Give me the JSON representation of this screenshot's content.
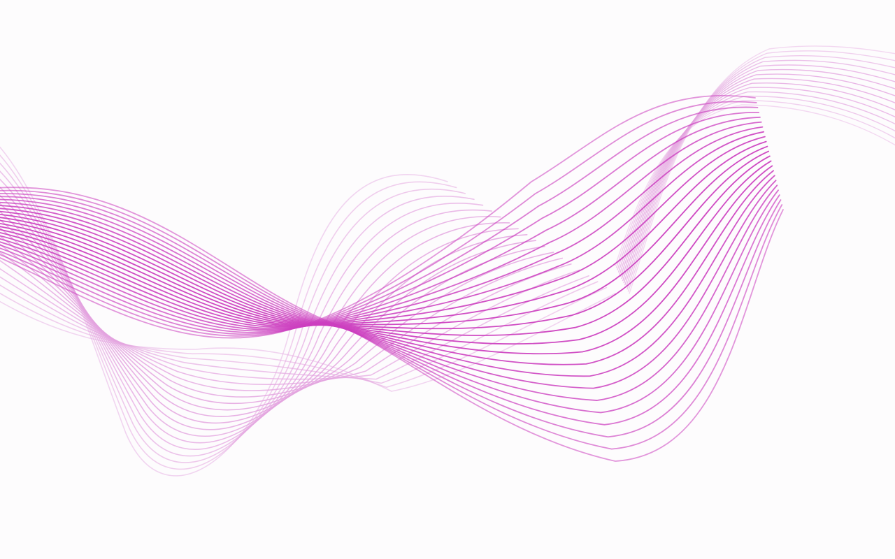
{
  "background_color": "#fdfcfd",
  "wave_color": "#cc3fbf",
  "wave_color_light": "#e3a3df",
  "bands": [
    {
      "name": "primary-ribbon",
      "line_count": 24
    },
    {
      "name": "background-ribbon",
      "line_count": 20
    }
  ]
}
